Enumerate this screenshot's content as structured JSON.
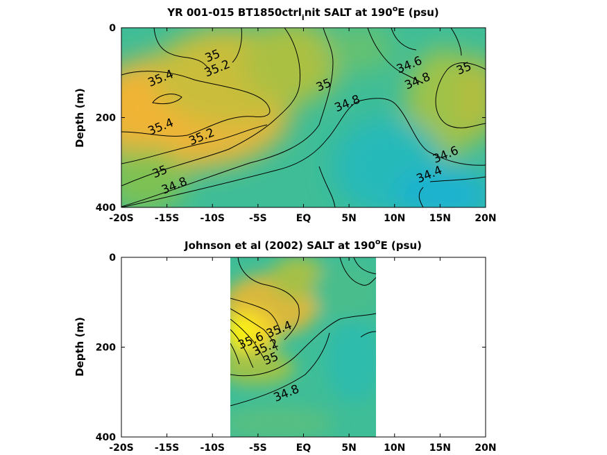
{
  "chart_data": [
    {
      "type": "contour",
      "title": "YR 001-015 BT1850ctrl_init SALT at 190°E (psu)",
      "title_parts": {
        "pre": "YR 001-015 BT1850ctrl",
        "sub": "i",
        "mid": "nit SALT at 190",
        "sup": "o",
        "post": "E (psu)"
      },
      "ylabel": "Depth (m)",
      "xlim": [
        -20,
        20
      ],
      "ylim": [
        400,
        0
      ],
      "x_tick_labels": [
        "-20S",
        "-15S",
        "-10S",
        "-5S",
        "EQ",
        "5N",
        "10N",
        "15N",
        "20N"
      ],
      "y_tick_labels": [
        "0",
        "200",
        "400"
      ],
      "colormap": "parula",
      "data_extent": {
        "x": [
          -20,
          20
        ],
        "depth": [
          0,
          400
        ]
      },
      "contour_labels": [
        {
          "text": "35",
          "x": -10,
          "y": 62
        },
        {
          "text": "35.2",
          "x": -9.5,
          "y": 90
        },
        {
          "text": "35.4",
          "x": -15.7,
          "y": 112
        },
        {
          "text": "35",
          "x": 2.2,
          "y": 127
        },
        {
          "text": "34.8",
          "x": 4.8,
          "y": 168
        },
        {
          "text": "34.6",
          "x": 11.6,
          "y": 82
        },
        {
          "text": "34.8",
          "x": 12.5,
          "y": 118
        },
        {
          "text": "35",
          "x": 17.6,
          "y": 90
        },
        {
          "text": "35.4",
          "x": -15.7,
          "y": 220
        },
        {
          "text": "35.2",
          "x": -11.2,
          "y": 242
        },
        {
          "text": "35",
          "x": -15.8,
          "y": 320
        },
        {
          "text": "34.8",
          "x": -14.2,
          "y": 351
        },
        {
          "text": "34.6",
          "x": 15.6,
          "y": 282
        },
        {
          "text": "34.4",
          "x": 13.8,
          "y": 326
        }
      ]
    },
    {
      "type": "contour",
      "title": "Johnson et al (2002) SALT at 190°E (psu)",
      "title_parts": {
        "pre": "Johnson et al (2002) SALT at 190",
        "sup": "o",
        "post": "E (psu)"
      },
      "ylabel": "Depth (m)",
      "xlim": [
        -20,
        20
      ],
      "ylim": [
        400,
        0
      ],
      "x_tick_labels": [
        "-20S",
        "-15S",
        "-10S",
        "-5S",
        "EQ",
        "5N",
        "10N",
        "15N",
        "20N"
      ],
      "y_tick_labels": [
        "0",
        "200",
        "400"
      ],
      "colormap": "parula",
      "data_extent": {
        "x": [
          -8,
          8
        ],
        "depth": [
          0,
          400
        ]
      },
      "contour_labels": [
        {
          "text": "35.4",
          "x": -2.7,
          "y": 160
        },
        {
          "text": "35.2",
          "x": -4.2,
          "y": 200
        },
        {
          "text": "35",
          "x": -3.6,
          "y": 225
        },
        {
          "text": "35.6",
          "x": -5.8,
          "y": 185
        },
        {
          "text": "34.8",
          "x": -1.9,
          "y": 302
        }
      ]
    }
  ]
}
